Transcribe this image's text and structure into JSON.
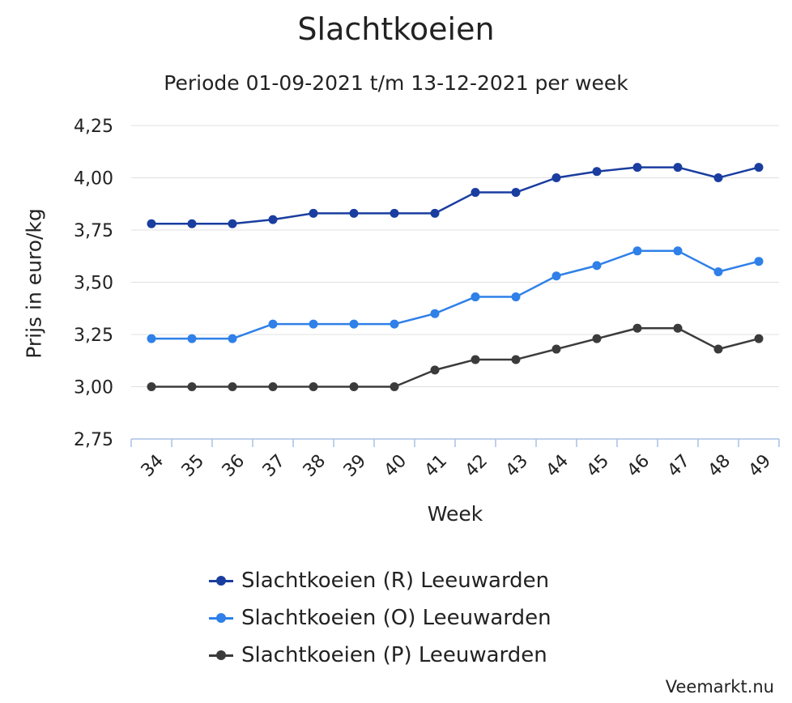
{
  "chart_data": {
    "type": "line",
    "title": "Slachtkoeien",
    "subtitle": "Periode 01-09-2021 t/m 13-12-2021 per week",
    "xlabel": "Week",
    "ylabel": "Prijs in euro/kg",
    "categories": [
      "34",
      "35",
      "36",
      "37",
      "38",
      "39",
      "40",
      "41",
      "42",
      "43",
      "44",
      "45",
      "46",
      "47",
      "48",
      "49"
    ],
    "ylim": [
      2.75,
      4.25
    ],
    "yticks": [
      "2,75",
      "3,00",
      "3,25",
      "3,50",
      "3,75",
      "4,00",
      "4,25"
    ],
    "ytick_values": [
      2.75,
      3.0,
      3.25,
      3.5,
      3.75,
      4.0,
      4.25
    ],
    "grid": true,
    "legend_position": "bottom",
    "series": [
      {
        "name": "Slachtkoeien (R) Leeuwarden",
        "color": "#1a3da0",
        "values": [
          3.78,
          3.78,
          3.78,
          3.8,
          3.83,
          3.83,
          3.83,
          3.83,
          3.93,
          3.93,
          4.0,
          4.03,
          4.05,
          4.05,
          4.0,
          4.05
        ]
      },
      {
        "name": "Slachtkoeien (O) Leeuwarden",
        "color": "#2f80e8",
        "values": [
          3.23,
          3.23,
          3.23,
          3.3,
          3.3,
          3.3,
          3.3,
          3.35,
          3.43,
          3.43,
          3.53,
          3.58,
          3.65,
          3.65,
          3.55,
          3.6
        ]
      },
      {
        "name": "Slachtkoeien (P) Leeuwarden",
        "color": "#3b3b3b",
        "values": [
          3.0,
          3.0,
          3.0,
          3.0,
          3.0,
          3.0,
          3.0,
          3.08,
          3.13,
          3.13,
          3.18,
          3.23,
          3.28,
          3.28,
          3.18,
          3.23
        ]
      }
    ]
  },
  "credit": "Veemarkt.nu"
}
